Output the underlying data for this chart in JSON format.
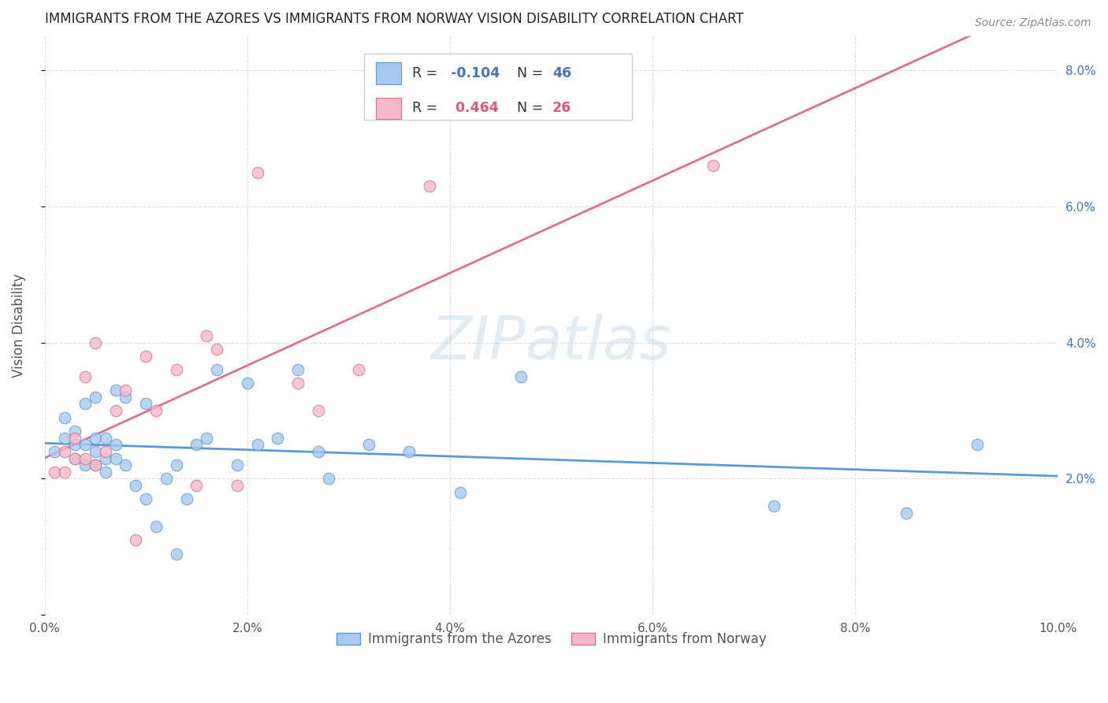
{
  "title": "IMMIGRANTS FROM THE AZORES VS IMMIGRANTS FROM NORWAY VISION DISABILITY CORRELATION CHART",
  "source": "Source: ZipAtlas.com",
  "ylabel": "Vision Disability",
  "xlim": [
    0.0,
    0.1
  ],
  "ylim": [
    0.0,
    0.085
  ],
  "xticks": [
    0.0,
    0.02,
    0.04,
    0.06,
    0.08,
    0.1
  ],
  "yticks": [
    0.0,
    0.02,
    0.04,
    0.06,
    0.08
  ],
  "ytick_labels": [
    "",
    "2.0%",
    "4.0%",
    "6.0%",
    "8.0%"
  ],
  "xtick_labels": [
    "0.0%",
    "2.0%",
    "4.0%",
    "6.0%",
    "8.0%",
    "10.0%"
  ],
  "grid_color": "#dddddd",
  "background_color": "#ffffff",
  "watermark": "ZIPatlas",
  "azores_color": "#a8c8f0",
  "azores_edge": "#5b9bd5",
  "azores_line": "#5b9bd5",
  "norway_color": "#f4b8c8",
  "norway_edge": "#e07090",
  "norway_line": "#e07090",
  "azores_R": -0.104,
  "azores_N": 46,
  "norway_R": 0.464,
  "norway_N": 26,
  "azores_name": "Immigrants from the Azores",
  "norway_name": "Immigrants from Norway",
  "azores_x": [
    0.001,
    0.002,
    0.002,
    0.003,
    0.003,
    0.003,
    0.004,
    0.004,
    0.004,
    0.005,
    0.005,
    0.005,
    0.005,
    0.006,
    0.006,
    0.006,
    0.007,
    0.007,
    0.007,
    0.008,
    0.008,
    0.009,
    0.01,
    0.01,
    0.011,
    0.012,
    0.013,
    0.013,
    0.014,
    0.015,
    0.016,
    0.017,
    0.019,
    0.02,
    0.021,
    0.023,
    0.025,
    0.027,
    0.028,
    0.032,
    0.036,
    0.041,
    0.047,
    0.072,
    0.085,
    0.092
  ],
  "azores_y": [
    0.024,
    0.026,
    0.029,
    0.023,
    0.025,
    0.027,
    0.022,
    0.025,
    0.031,
    0.022,
    0.024,
    0.026,
    0.032,
    0.021,
    0.023,
    0.026,
    0.023,
    0.025,
    0.033,
    0.022,
    0.032,
    0.019,
    0.017,
    0.031,
    0.013,
    0.02,
    0.009,
    0.022,
    0.017,
    0.025,
    0.026,
    0.036,
    0.022,
    0.034,
    0.025,
    0.026,
    0.036,
    0.024,
    0.02,
    0.025,
    0.024,
    0.018,
    0.035,
    0.016,
    0.015,
    0.025
  ],
  "norway_x": [
    0.001,
    0.002,
    0.002,
    0.003,
    0.003,
    0.004,
    0.004,
    0.005,
    0.005,
    0.006,
    0.007,
    0.008,
    0.009,
    0.01,
    0.011,
    0.013,
    0.015,
    0.016,
    0.017,
    0.019,
    0.021,
    0.025,
    0.027,
    0.031,
    0.038,
    0.066
  ],
  "norway_y": [
    0.021,
    0.021,
    0.024,
    0.023,
    0.026,
    0.023,
    0.035,
    0.022,
    0.04,
    0.024,
    0.03,
    0.033,
    0.011,
    0.038,
    0.03,
    0.036,
    0.019,
    0.041,
    0.039,
    0.019,
    0.065,
    0.034,
    0.03,
    0.036,
    0.063,
    0.066
  ]
}
